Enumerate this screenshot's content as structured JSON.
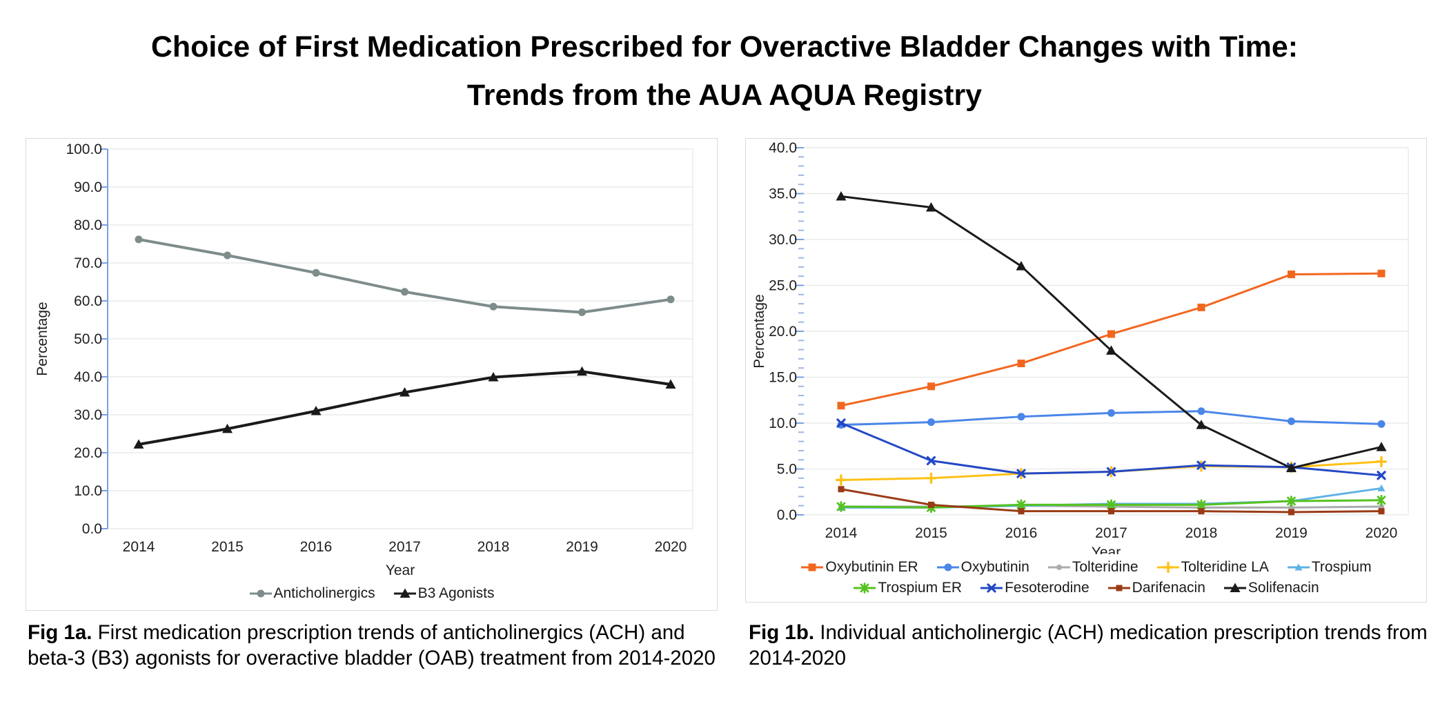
{
  "title": {
    "line1": "Choice of First Medication Prescribed for Overactive Bladder Changes with Time:",
    "line2": "Trends from the AUA AQUA Registry"
  },
  "figures": [
    {
      "caption_label": "Fig 1a.",
      "caption_text": "First medication prescription trends of anticholinergics (ACH) and beta-3 (B3) agonists for overactive bladder (OAB) treatment from 2014-2020"
    },
    {
      "caption_label": "Fig 1b.",
      "caption_text": "Individual anticholinergic (ACH) medication prescription trends from 2014-2020"
    }
  ],
  "colors": {
    "axis_blue": "#7c9fe0",
    "minor_tick_blue": "#9cb4e6",
    "gridline": "#e9ebeb",
    "panel_border": "#d9dbdb"
  },
  "chart_data": [
    {
      "id": "chart-a",
      "type": "line",
      "title": "",
      "xlabel": "Year",
      "ylabel": "Percentage",
      "categories": [
        2014,
        2015,
        2016,
        2017,
        2018,
        2019,
        2020
      ],
      "ylim": [
        0,
        100
      ],
      "ytick_step": 10,
      "grid": true,
      "legend_position": "bottom",
      "series": [
        {
          "name": "Anticholinergics",
          "color": "#7e8c8b",
          "marker": "circle",
          "values": [
            76.2,
            72.0,
            67.4,
            62.4,
            58.5,
            57.0,
            60.4
          ]
        },
        {
          "name": "B3 Agonists",
          "color": "#1a1a1a",
          "marker": "triangle",
          "values": [
            22.2,
            26.3,
            31.0,
            35.9,
            39.9,
            41.4,
            38.0
          ]
        }
      ]
    },
    {
      "id": "chart-b",
      "type": "line",
      "title": "",
      "xlabel": "Year",
      "ylabel": "Percentage",
      "categories": [
        2014,
        2015,
        2016,
        2017,
        2018,
        2019,
        2020
      ],
      "ylim": [
        0,
        40
      ],
      "ytick_step": 5,
      "minor_tick_step": 1,
      "grid": true,
      "legend_position": "bottom",
      "series": [
        {
          "name": "Oxybutinin ER",
          "color": "#f2671f",
          "marker": "square",
          "values": [
            11.9,
            14.0,
            16.5,
            19.7,
            22.6,
            26.2,
            26.3
          ]
        },
        {
          "name": "Oxybutinin",
          "color": "#4a86e8",
          "marker": "circle",
          "values": [
            9.8,
            10.1,
            10.7,
            11.1,
            11.3,
            10.2,
            9.9
          ]
        },
        {
          "name": "Tolteridine",
          "color": "#a9acad",
          "marker": "circle-small",
          "values": [
            0.9,
            0.9,
            1.0,
            0.9,
            0.8,
            0.8,
            0.9
          ]
        },
        {
          "name": "Tolteridine LA",
          "color": "#ffc117",
          "marker": "plus",
          "values": [
            3.8,
            4.0,
            4.5,
            4.7,
            5.3,
            5.2,
            5.8
          ]
        },
        {
          "name": "Trospium",
          "color": "#5fb2e6",
          "marker": "triangle-small",
          "values": [
            0.8,
            0.8,
            1.0,
            1.2,
            1.2,
            1.5,
            2.9
          ]
        },
        {
          "name": "Trospium ER",
          "color": "#55c21f",
          "marker": "asterisk",
          "values": [
            0.9,
            0.8,
            1.1,
            1.1,
            1.1,
            1.5,
            1.6
          ]
        },
        {
          "name": "Fesoterodine",
          "color": "#2348c6",
          "marker": "x",
          "values": [
            10.0,
            5.9,
            4.5,
            4.7,
            5.4,
            5.2,
            4.3
          ]
        },
        {
          "name": "Darifenacin",
          "color": "#9a3b16",
          "marker": "square-small",
          "values": [
            2.8,
            1.1,
            0.4,
            0.4,
            0.4,
            0.3,
            0.4
          ]
        },
        {
          "name": "Solifenacin",
          "color": "#1a1a1a",
          "marker": "triangle",
          "values": [
            34.7,
            33.5,
            27.1,
            17.9,
            9.8,
            5.1,
            7.4
          ]
        }
      ]
    }
  ]
}
